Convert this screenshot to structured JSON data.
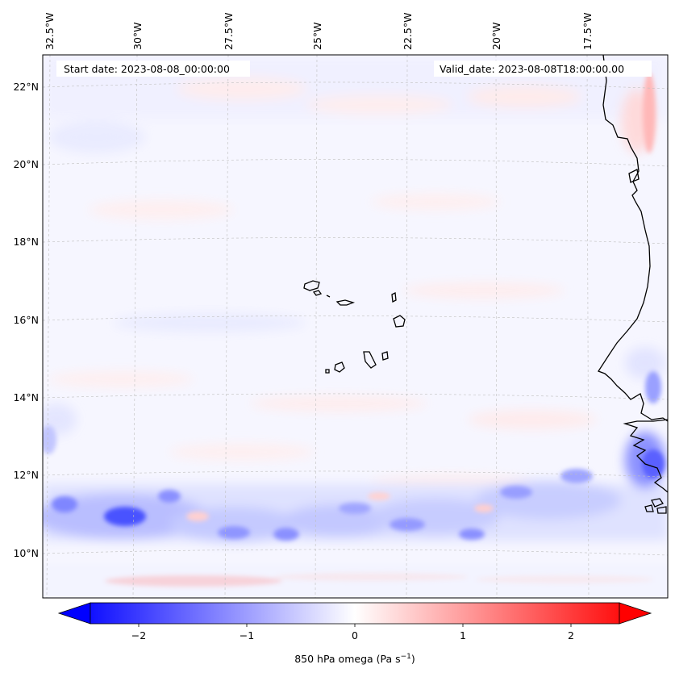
{
  "annotations": {
    "start_date": "Start date: 2023-08-08_00:00:00",
    "valid_date": "Valid_date: 2023-08-08T18:00:00.00"
  },
  "longitude_labels": [
    "32.5°W",
    "30°W",
    "27.5°W",
    "25°W",
    "22.5°W",
    "20°W",
    "17.5°W"
  ],
  "latitude_labels": [
    "22°N",
    "20°N",
    "18°N",
    "16°N",
    "14°N",
    "12°N",
    "10°N"
  ],
  "colorbar": {
    "label": "850 hPa omega (Pa s",
    "label_exponent": "−1",
    "label_close": ")",
    "ticks": [
      "−2",
      "−1",
      "0",
      "1",
      "2"
    ],
    "tick_values": [
      -2,
      -1,
      0,
      1,
      2
    ],
    "vmin": -2.6,
    "vmax": 2.6,
    "extend": "both",
    "colormap": "bwr",
    "color_low": "#0000ff",
    "color_mid": "#ffffff",
    "color_high": "#ff0000"
  },
  "chart_data": {
    "type": "heatmap",
    "variable": "850 hPa omega",
    "units": "Pa s^-1",
    "lon_range": [
      -33,
      -15.5
    ],
    "lat_range": [
      9,
      22.7
    ],
    "features": [
      {
        "name": "ITCZ ascent band",
        "sign": "negative",
        "lat_range": [
          10,
          12
        ],
        "min_value": -2.2
      },
      {
        "name": "descent band south",
        "sign": "positive",
        "lat_range": [
          9.2,
          9.6
        ],
        "max_value": 0.8
      },
      {
        "name": "Cape Verde islands",
        "lat_range": [
          14.8,
          17.2
        ],
        "lon_range": [
          -25.3,
          -22.7
        ]
      },
      {
        "name": "West African coast",
        "lon_range": [
          -17.5,
          -15.5
        ],
        "lat_range": [
          10.5,
          22.7
        ]
      }
    ]
  }
}
